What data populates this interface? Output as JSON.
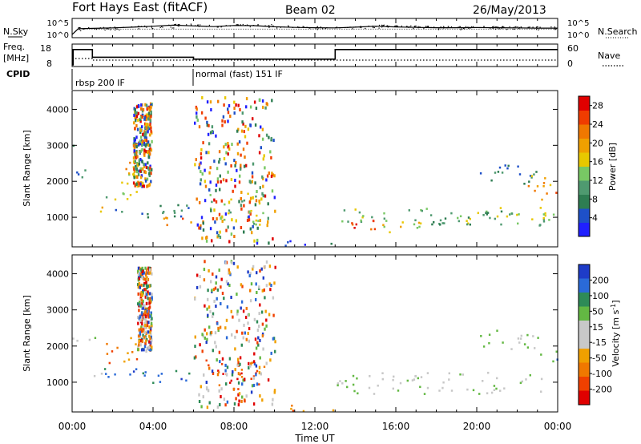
{
  "header": {
    "title": "Fort Hays East (fitACF)",
    "beam": "Beam 02",
    "date": "26/May/2013"
  },
  "noise_panel": {
    "left_label": "N.Sky",
    "right_label": "N.Search",
    "y_ticks": [
      "10^5",
      "10^0"
    ]
  },
  "freq_panel": {
    "left_label_1": "Freq.",
    "left_label_2": "[MHz]",
    "right_label": "Nave",
    "left_ticks": [
      "18",
      "8"
    ],
    "right_ticks": [
      "60",
      "0"
    ]
  },
  "cpid": {
    "label": "CPID",
    "segments": [
      {
        "start": "00:00",
        "label": "rbsp 200 IF"
      },
      {
        "start": "06:00",
        "label": "normal (fast) 151 IF"
      }
    ]
  },
  "x_axis": {
    "label": "Time UT",
    "ticks": [
      "00:00",
      "04:00",
      "08:00",
      "12:00",
      "16:00",
      "20:00",
      "00:00"
    ]
  },
  "colors": {
    "power": [
      "#2020ff",
      "#1e50c8",
      "#2e7d52",
      "#4f9a70",
      "#78c864",
      "#e8c800",
      "#f0a000",
      "#f07800",
      "#f03c00",
      "#e00000"
    ],
    "velocity": [
      "#1e3cc8",
      "#2a6ad8",
      "#2e8b57",
      "#63b843",
      "#c8c8c8",
      "#c8c8c8",
      "#f0a000",
      "#f07800",
      "#f04000",
      "#e00000"
    ]
  },
  "chart_data": [
    {
      "type": "line",
      "title": "N.Sky",
      "xlabel": "Time UT",
      "x_unit": "hours UT",
      "yscale": "log",
      "ylim": [
        1,
        100000
      ],
      "series": [
        {
          "name": "N.Sky",
          "x": [
            0,
            0.3,
            1,
            2,
            3,
            4,
            5,
            6,
            7,
            8,
            9,
            10,
            11,
            12,
            13,
            14,
            15,
            16,
            17,
            18,
            19,
            20,
            21,
            22,
            23,
            24
          ],
          "values": [
            3,
            200,
            250,
            350,
            600,
            1200,
            2500,
            1500,
            900,
            2000,
            1800,
            800,
            500,
            400,
            350,
            600,
            1200,
            700,
            500,
            400,
            400,
            450,
            400,
            350,
            300,
            300
          ]
        },
        {
          "name": "N.Search",
          "x": [
            0,
            0.3,
            24
          ],
          "values": [
            3,
            150,
            150
          ]
        }
      ]
    },
    {
      "type": "line",
      "title": "Freq. / Nave",
      "x_unit": "hours UT",
      "ylabel": "Freq. [MHz]",
      "ylim": [
        8,
        18
      ],
      "series": [
        {
          "name": "Freq.",
          "x": [
            0,
            0.05,
            0.05,
            1.0,
            1.0,
            6.0,
            6.0,
            13.0,
            13.0,
            24
          ],
          "values": [
            8,
            8,
            16,
            16,
            12,
            12,
            11,
            11,
            16,
            16
          ]
        },
        {
          "name": "Nave",
          "x": [
            0,
            0.05,
            0.05,
            1.0,
            1.0,
            24
          ],
          "values": [
            0,
            0,
            20,
            20,
            15,
            15
          ]
        }
      ],
      "y2label": "Nave",
      "y2lim": [
        0,
        60
      ]
    },
    {
      "type": "heatmap",
      "title": "Power [dB]",
      "xlabel": "Time UT",
      "ylabel": "Slant Range [km]",
      "x_unit": "hours UT",
      "xlim": [
        0,
        24
      ],
      "ylim": [
        200,
        4500
      ],
      "y_ticks": [
        1000,
        2000,
        3000,
        4000
      ],
      "colorbar": {
        "label": "Power [dB]",
        "ticks": [
          4,
          8,
          12,
          16,
          20,
          24,
          28
        ],
        "range": [
          0,
          30
        ]
      },
      "regions": [
        {
          "t0": 0.0,
          "t1": 0.3,
          "r0": 2700,
          "r1": 3200,
          "value": 6
        },
        {
          "t0": 0.0,
          "t1": 1.0,
          "r0": 2100,
          "r1": 2500,
          "value": 8
        },
        {
          "t0": 0.9,
          "t1": 1.6,
          "r0": 1150,
          "r1": 1450,
          "value": 16
        },
        {
          "t0": 1.6,
          "t1": 3.2,
          "r0": 1500,
          "r1": 2300,
          "value": 12
        },
        {
          "t0": 2.6,
          "t1": 3.3,
          "r0": 1800,
          "r1": 2800,
          "value": 18
        },
        {
          "t0": 3.0,
          "t1": 3.9,
          "r0": 1900,
          "r1": 4200,
          "value": 6
        },
        {
          "t0": 1.5,
          "t1": 5.8,
          "r0": 1000,
          "r1": 1400,
          "value": 8
        },
        {
          "t0": 4.5,
          "t1": 5.9,
          "r0": 800,
          "r1": 1150,
          "value": 18
        },
        {
          "t0": 5.3,
          "t1": 5.9,
          "r0": 850,
          "r1": 1050,
          "value": 26
        },
        {
          "t0": 6.5,
          "t1": 9.5,
          "r0": 800,
          "r1": 1700,
          "value": 14
        },
        {
          "t0": 6.0,
          "t1": 10.0,
          "r0": 300,
          "r1": 4400,
          "value": 4
        },
        {
          "t0": 10.0,
          "t1": 13.0,
          "r0": 220,
          "r1": 400,
          "value": 4
        },
        {
          "t0": 13.0,
          "t1": 23.8,
          "r0": 850,
          "r1": 1300,
          "value": 12
        },
        {
          "t0": 13.3,
          "t1": 15.0,
          "r0": 500,
          "r1": 1000,
          "value": 24
        },
        {
          "t0": 15.0,
          "t1": 17.5,
          "r0": 600,
          "r1": 1000,
          "value": 16
        },
        {
          "t0": 17.5,
          "t1": 23.8,
          "r0": 800,
          "r1": 1200,
          "value": 10
        },
        {
          "t0": 20.0,
          "t1": 23.0,
          "r0": 1900,
          "r1": 2500,
          "value": 6
        },
        {
          "t0": 22.5,
          "t1": 24.0,
          "r0": 1500,
          "r1": 2200,
          "value": 20
        },
        {
          "t0": 23.6,
          "t1": 24.0,
          "r0": 1600,
          "r1": 1900,
          "value": 28
        }
      ]
    },
    {
      "type": "heatmap",
      "title": "Velocity [m s-1]",
      "xlabel": "Time UT",
      "ylabel": "Slant Range [km]",
      "x_unit": "hours UT",
      "xlim": [
        0,
        24
      ],
      "ylim": [
        200,
        4500
      ],
      "y_ticks": [
        1000,
        2000,
        3000,
        4000
      ],
      "colorbar": {
        "label": "Velocity [m s-1]",
        "ticks": [
          200,
          100,
          50,
          15,
          -15,
          -50,
          -100,
          -200
        ]
      },
      "regions": [
        {
          "t0": 0.0,
          "t1": 1.2,
          "r0": 2100,
          "r1": 2500,
          "value": 0
        },
        {
          "t0": 0.9,
          "t1": 1.6,
          "r0": 1100,
          "r1": 1400,
          "value": 0
        },
        {
          "t0": 1.6,
          "t1": 3.2,
          "r0": 1500,
          "r1": 2300,
          "value": -70
        },
        {
          "t0": 3.2,
          "t1": 3.9,
          "r0": 1900,
          "r1": 4200,
          "value": 200
        },
        {
          "t0": 1.5,
          "t1": 5.8,
          "r0": 1000,
          "r1": 1450,
          "value": 120
        },
        {
          "t0": 6.5,
          "t1": 9.5,
          "r0": 800,
          "r1": 1700,
          "value": -150
        },
        {
          "t0": 6.0,
          "t1": 10.0,
          "r0": 300,
          "r1": 4400,
          "value": 200
        },
        {
          "t0": 10.0,
          "t1": 13.0,
          "r0": 220,
          "r1": 400,
          "value": -60
        },
        {
          "t0": 13.0,
          "t1": 23.8,
          "r0": 700,
          "r1": 1300,
          "value": 0
        },
        {
          "t0": 20.0,
          "t1": 23.0,
          "r0": 1900,
          "r1": 2500,
          "value": 0
        },
        {
          "t0": 23.0,
          "t1": 24.0,
          "r0": 1600,
          "r1": 2000,
          "value": 60
        }
      ]
    }
  ]
}
